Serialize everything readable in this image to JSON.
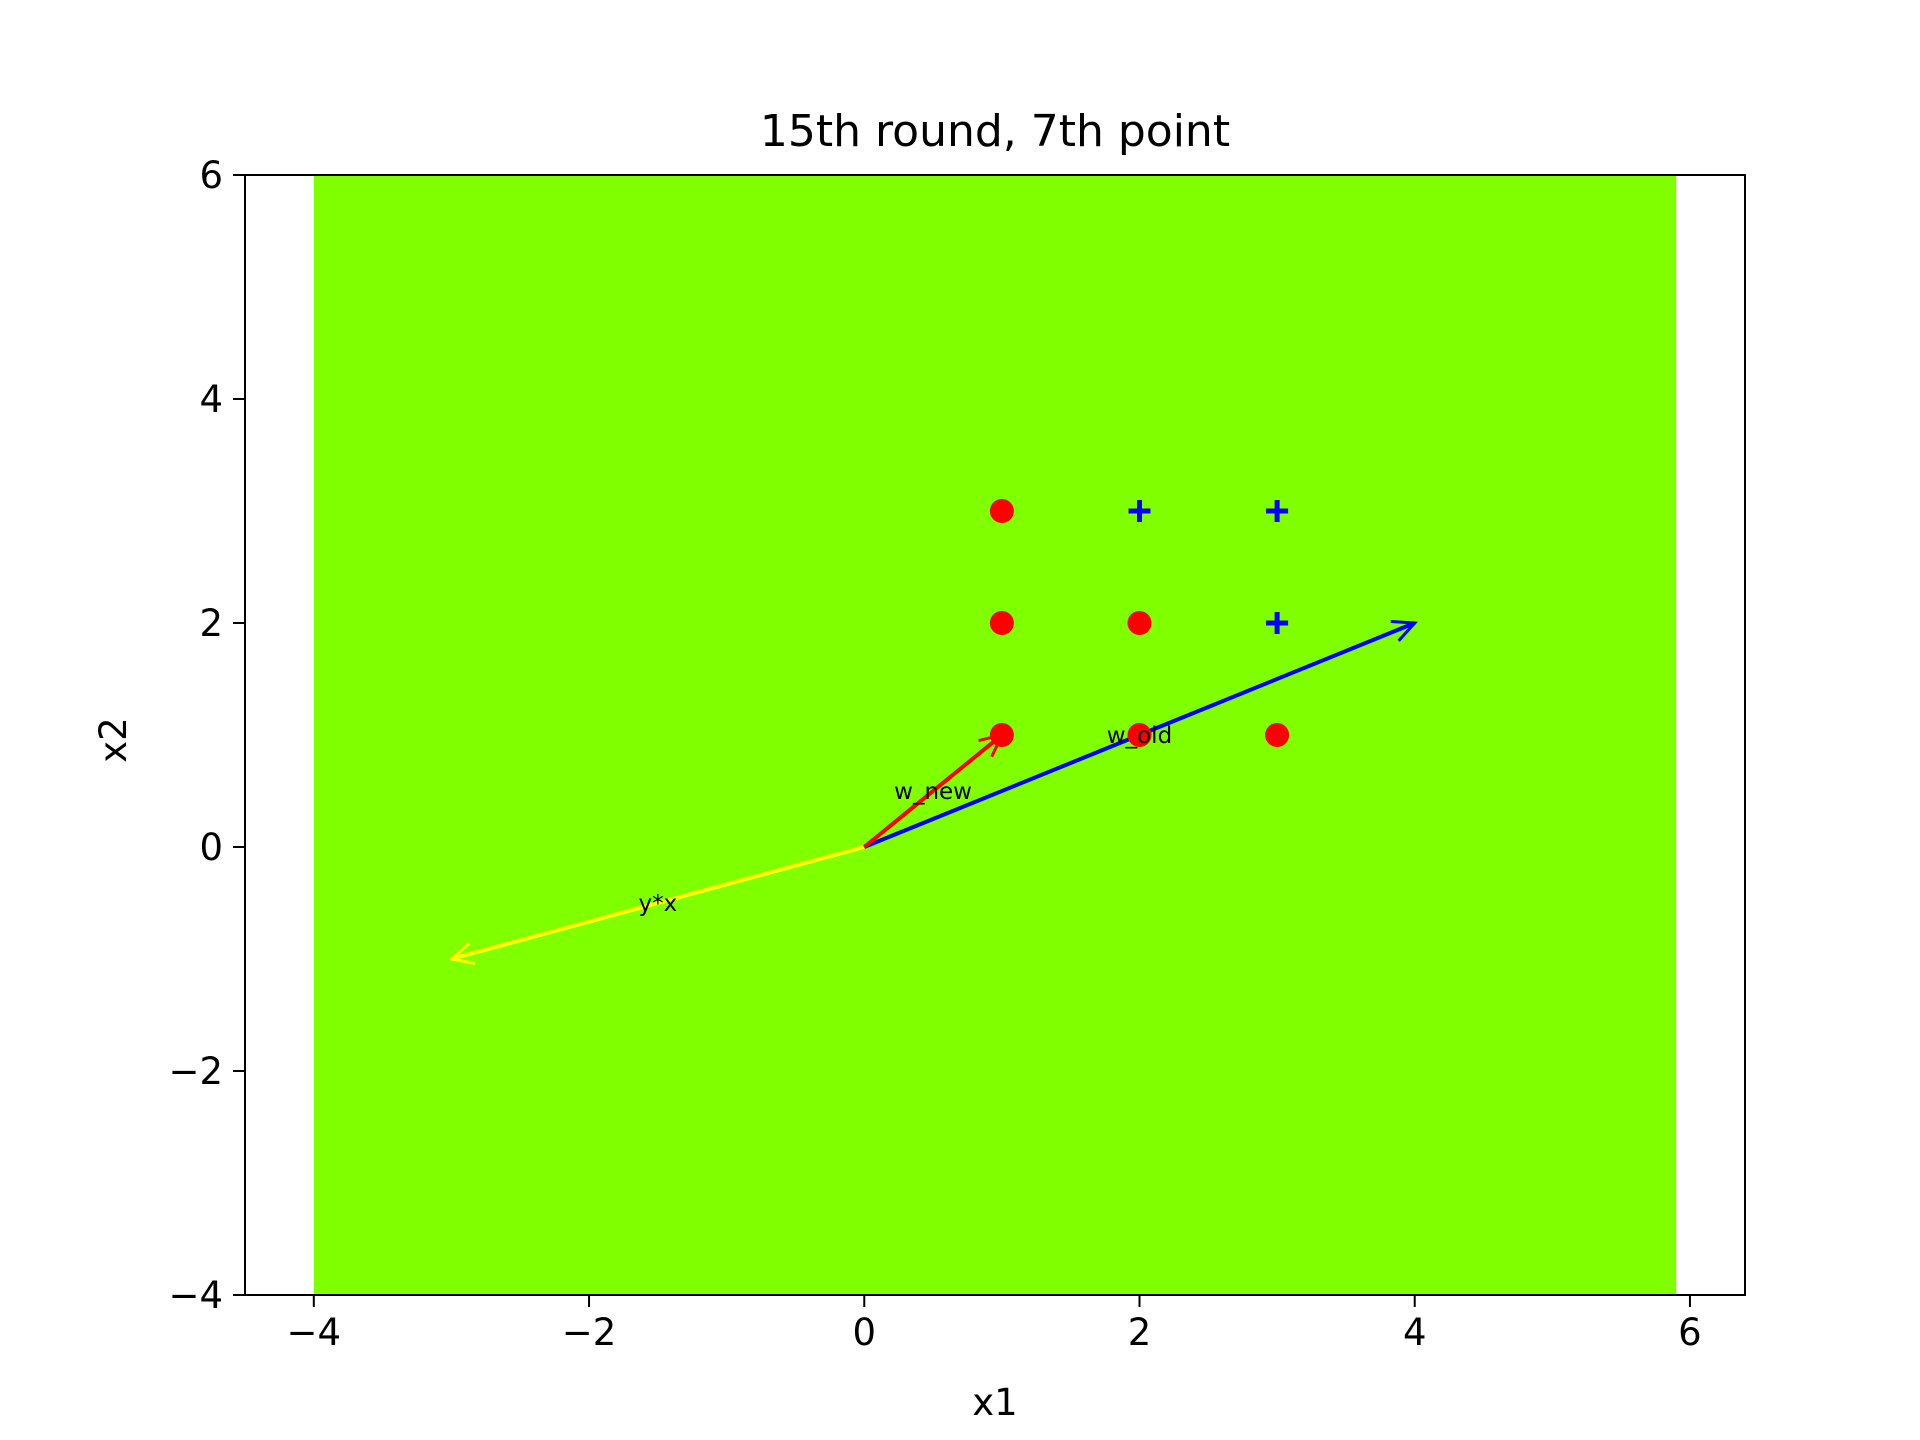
{
  "chart_data": {
    "type": "scatter",
    "title": "15th round, 7th point",
    "xlabel": "x1",
    "ylabel": "x2",
    "xlim": [
      -4.5,
      6.4
    ],
    "ylim": [
      -4,
      6
    ],
    "xticks": [
      -4,
      -2,
      0,
      2,
      4,
      6
    ],
    "yticks": [
      -4,
      -2,
      0,
      2,
      4,
      6
    ],
    "grid": false,
    "region": {
      "x": [
        -4,
        5.9
      ],
      "y": [
        -4,
        6
      ],
      "color": "#80ff00"
    },
    "series": [
      {
        "marker": "circle",
        "color": "#ff0000",
        "points": [
          [
            1,
            3
          ],
          [
            1,
            2
          ],
          [
            2,
            2
          ],
          [
            1,
            1
          ],
          [
            2,
            1
          ],
          [
            3,
            1
          ]
        ]
      },
      {
        "marker": "plus",
        "color": "#0000ff",
        "points": [
          [
            2,
            3
          ],
          [
            3,
            3
          ],
          [
            3,
            2
          ]
        ]
      }
    ],
    "vectors": [
      {
        "label": "y*x",
        "from": [
          0,
          0
        ],
        "to": [
          -3,
          -1
        ],
        "color": "#ffff00",
        "label_at": [
          -1.5,
          -0.5
        ]
      },
      {
        "label": "w_old",
        "from": [
          0,
          0
        ],
        "to": [
          4,
          2
        ],
        "color": "#0000ff",
        "label_at": [
          2,
          1
        ]
      },
      {
        "label": "w_new",
        "from": [
          0,
          0
        ],
        "to": [
          1,
          1
        ],
        "color": "#ff0000",
        "label_at": [
          0.5,
          0.5
        ]
      }
    ]
  }
}
